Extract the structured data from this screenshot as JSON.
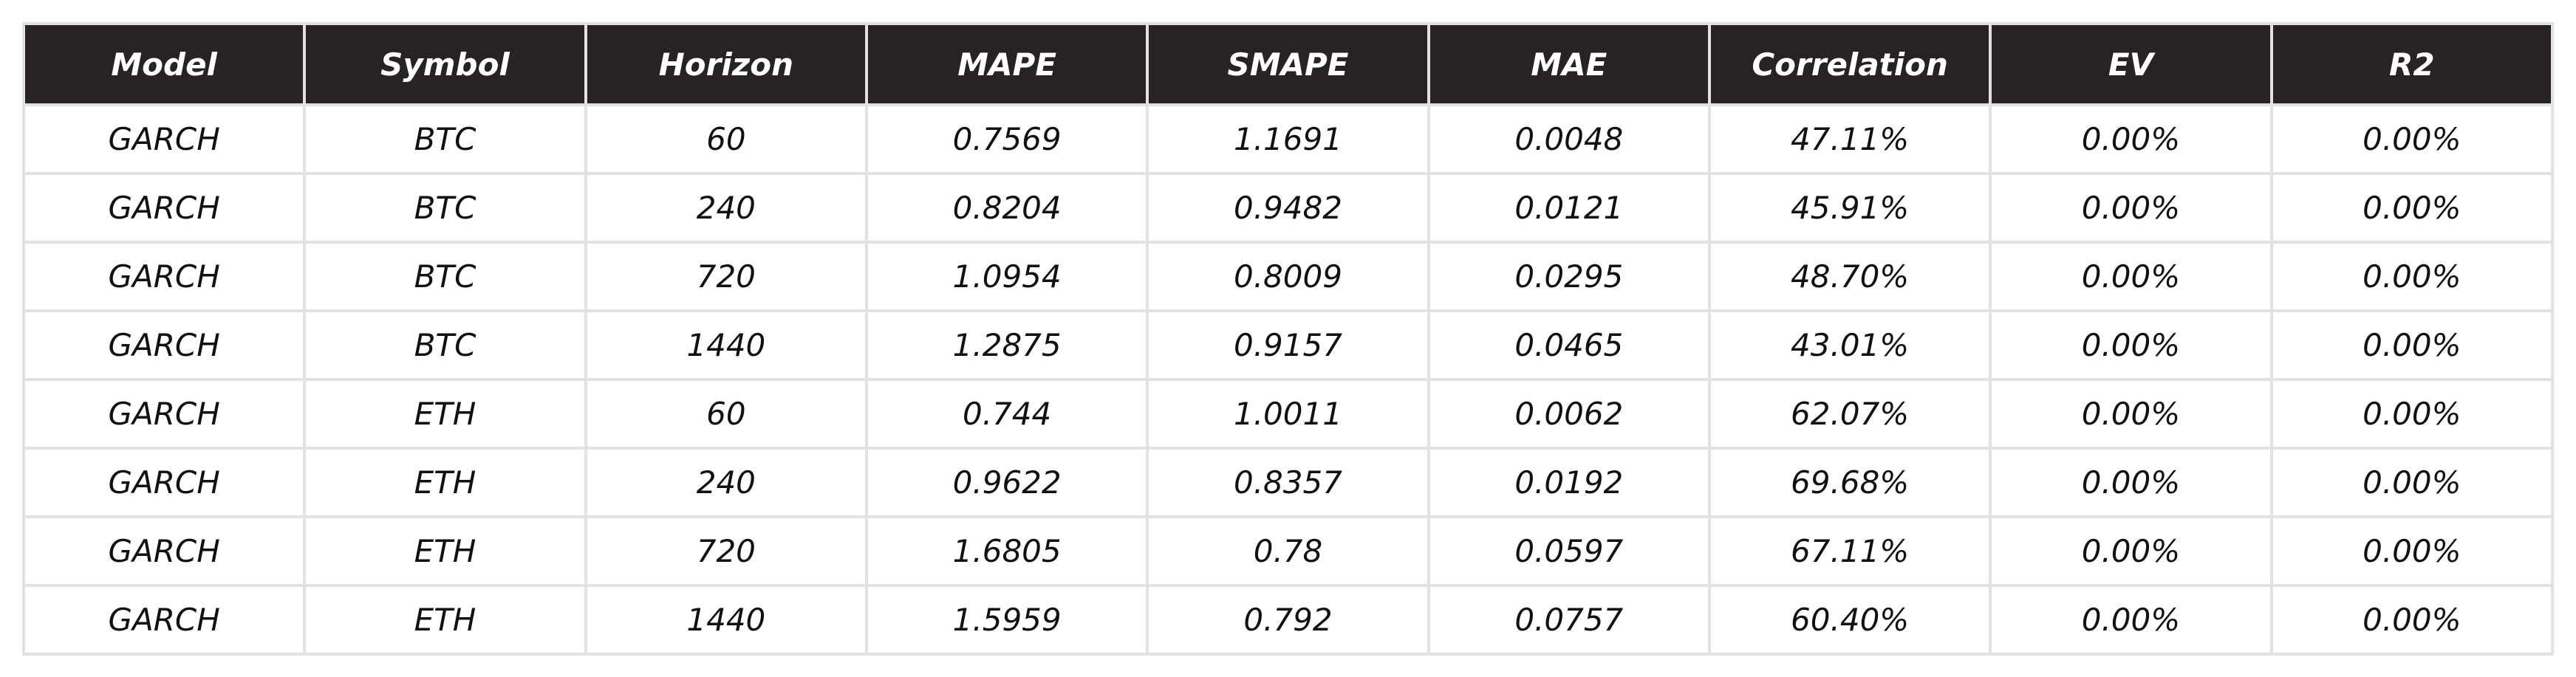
{
  "chart_data": {
    "type": "table",
    "columns": [
      "Model",
      "Symbol",
      "Horizon",
      "MAPE",
      "SMAPE",
      "MAE",
      "Correlation",
      "EV",
      "R2"
    ],
    "rows": [
      [
        "GARCH",
        "BTC",
        "60",
        "0.7569",
        "1.1691",
        "0.0048",
        "47.11%",
        "0.00%",
        "0.00%"
      ],
      [
        "GARCH",
        "BTC",
        "240",
        "0.8204",
        "0.9482",
        "0.0121",
        "45.91%",
        "0.00%",
        "0.00%"
      ],
      [
        "GARCH",
        "BTC",
        "720",
        "1.0954",
        "0.8009",
        "0.0295",
        "48.70%",
        "0.00%",
        "0.00%"
      ],
      [
        "GARCH",
        "BTC",
        "1440",
        "1.2875",
        "0.9157",
        "0.0465",
        "43.01%",
        "0.00%",
        "0.00%"
      ],
      [
        "GARCH",
        "ETH",
        "60",
        "0.744",
        "1.0011",
        "0.0062",
        "62.07%",
        "0.00%",
        "0.00%"
      ],
      [
        "GARCH",
        "ETH",
        "240",
        "0.9622",
        "0.8357",
        "0.0192",
        "69.68%",
        "0.00%",
        "0.00%"
      ],
      [
        "GARCH",
        "ETH",
        "720",
        "1.6805",
        "0.78",
        "0.0597",
        "67.11%",
        "0.00%",
        "0.00%"
      ],
      [
        "GARCH",
        "ETH",
        "1440",
        "1.5959",
        "0.792",
        "0.0757",
        "60.40%",
        "0.00%",
        "0.00%"
      ]
    ]
  },
  "colors": {
    "header_background": "#262322",
    "header_text": "#ffffff",
    "cell_text": "#111111",
    "grid_lines": "#e2e2e2"
  }
}
